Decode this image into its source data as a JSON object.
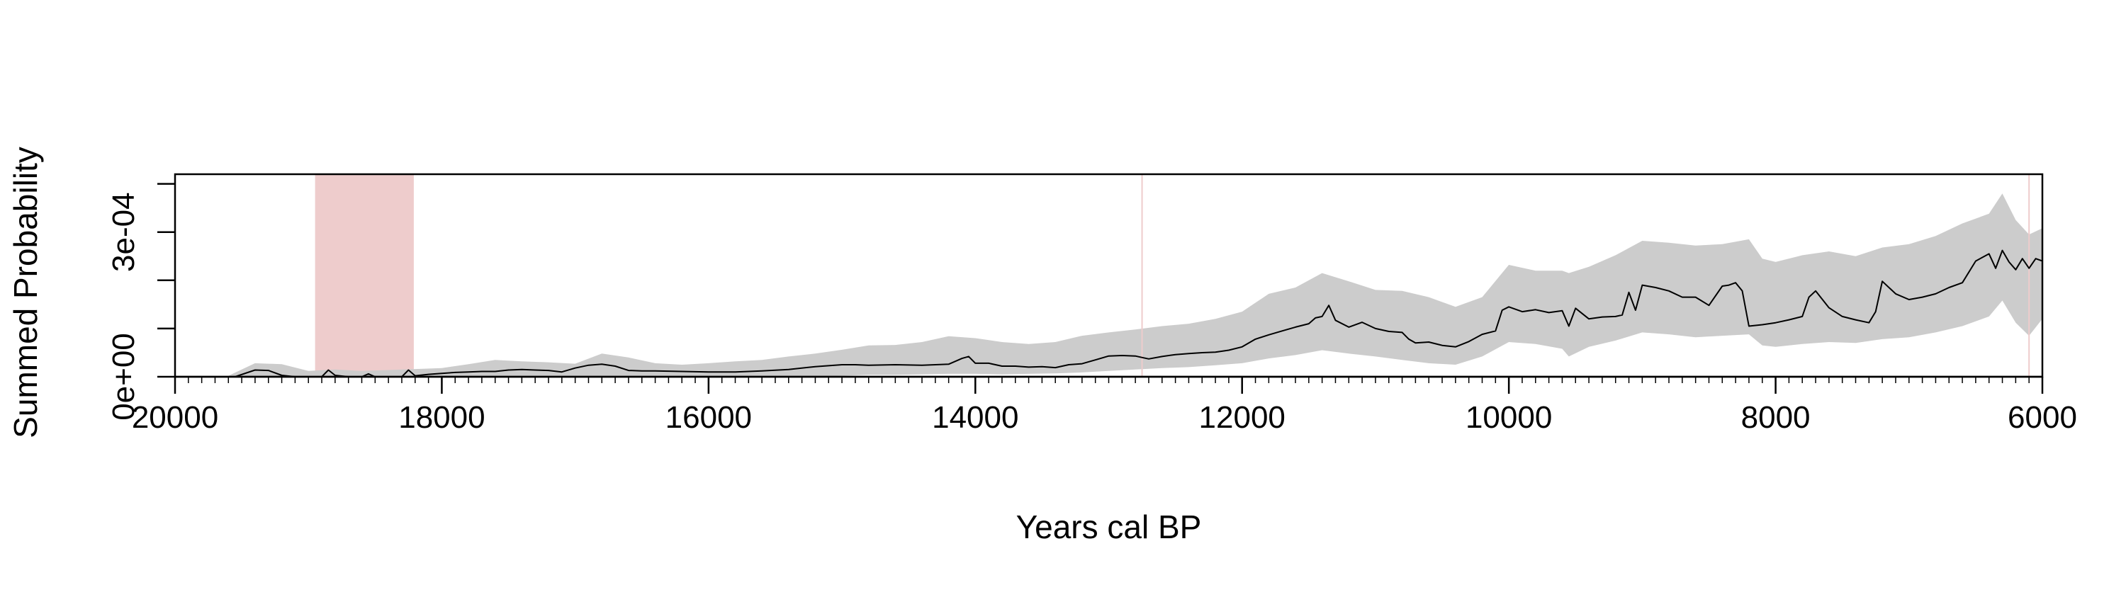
{
  "chart_data": {
    "type": "area",
    "title": "",
    "xlabel": "Years cal BP",
    "ylabel": "Summed Probability",
    "xlim": [
      20000,
      6000
    ],
    "ylim": [
      0,
      0.00042
    ],
    "x_ticks": [
      20000,
      18000,
      16000,
      14000,
      12000,
      10000,
      8000,
      6000
    ],
    "x_tick_labels": [
      "20000",
      "18000",
      "16000",
      "14000",
      "12000",
      "10000",
      "8000",
      "6000"
    ],
    "y_ticks": [
      0,
      0.0001,
      0.0002,
      0.0003,
      0.0004
    ],
    "y_tick_labels": [
      "0e+00",
      "",
      "",
      "3e-04",
      ""
    ],
    "grid": false,
    "colors": {
      "envelope": "#cccccc",
      "line": "#000000",
      "highlight": "#eecccc",
      "marker": "#eecccc"
    },
    "highlight_regions": [
      [
        18950,
        18210
      ]
    ],
    "marker_lines": [
      12750,
      6100
    ],
    "series": [
      {
        "role": "summed-probability",
        "x": [
          19550,
          19400,
          19300,
          19200,
          19100,
          19000,
          18900,
          18850,
          18800,
          18700,
          18600,
          18550,
          18500,
          18400,
          18300,
          18250,
          18200,
          18100,
          18000,
          17900,
          17800,
          17700,
          17600,
          17500,
          17400,
          17300,
          17200,
          17100,
          17000,
          16900,
          16800,
          16700,
          16600,
          16500,
          16400,
          16200,
          16000,
          15800,
          15600,
          15400,
          15200,
          15000,
          14900,
          14800,
          14600,
          14400,
          14200,
          14100,
          14050,
          14000,
          13900,
          13800,
          13700,
          13600,
          13500,
          13400,
          13300,
          13200,
          13100,
          13000,
          12900,
          12800,
          12750,
          12700,
          12600,
          12500,
          12400,
          12300,
          12200,
          12100,
          12000,
          11900,
          11800,
          11700,
          11600,
          11500,
          11450,
          11400,
          11350,
          11300,
          11200,
          11100,
          11000,
          10900,
          10800,
          10750,
          10700,
          10600,
          10500,
          10400,
          10300,
          10200,
          10100,
          10050,
          10000,
          9900,
          9800,
          9700,
          9600,
          9550,
          9500,
          9400,
          9300,
          9200,
          9150,
          9100,
          9050,
          9000,
          8900,
          8800,
          8700,
          8600,
          8500,
          8400,
          8350,
          8300,
          8250,
          8200,
          8100,
          8000,
          7900,
          7800,
          7750,
          7700,
          7600,
          7500,
          7400,
          7300,
          7250,
          7200,
          7100,
          7000,
          6900,
          6800,
          6700,
          6600,
          6500,
          6400,
          6350,
          6300,
          6250,
          6200,
          6150,
          6100,
          6050,
          6000
        ],
        "y": [
          0,
          1.4e-05,
          1.3e-05,
          3e-06,
          0,
          0,
          0,
          1.4e-05,
          3e-06,
          0,
          0,
          6e-06,
          0,
          0,
          0,
          1.4e-05,
          2e-06,
          5e-06,
          7e-06,
          9e-06,
          1e-05,
          1.1e-05,
          1.1e-05,
          1.4e-05,
          1.5e-05,
          1.4e-05,
          1.3e-05,
          1e-05,
          1.8e-05,
          2.4e-05,
          2.6e-05,
          2.2e-05,
          1.3e-05,
          1.2e-05,
          1.2e-05,
          1.1e-05,
          1e-05,
          1e-05,
          1.2e-05,
          1.5e-05,
          2.1e-05,
          2.5e-05,
          2.5e-05,
          2.4e-05,
          2.5e-05,
          2.4e-05,
          2.6e-05,
          3.8e-05,
          4.2e-05,
          2.8e-05,
          2.8e-05,
          2.2e-05,
          2.2e-05,
          2e-05,
          2.1e-05,
          1.9e-05,
          2.5e-05,
          2.7e-05,
          3.5e-05,
          4.3e-05,
          4.4e-05,
          4.3e-05,
          4e-05,
          3.7e-05,
          4.2e-05,
          4.6e-05,
          4.8e-05,
          5e-05,
          5.1e-05,
          5.5e-05,
          6.2e-05,
          7.8e-05,
          8.7e-05,
          9.5e-05,
          0.000103,
          0.00011,
          0.000122,
          0.000125,
          0.000148,
          0.000117,
          0.000103,
          0.000113,
          0.0001,
          9.4e-05,
          9.2e-05,
          7.8e-05,
          7e-05,
          7.2e-05,
          6.5e-05,
          6.2e-05,
          7.3e-05,
          8.8e-05,
          9.5e-05,
          0.000138,
          0.000145,
          0.000135,
          0.000139,
          0.000133,
          0.000137,
          0.000105,
          0.000142,
          0.00012,
          0.000124,
          0.000125,
          0.000128,
          0.000175,
          0.000138,
          0.00019,
          0.000185,
          0.000178,
          0.000165,
          0.000165,
          0.000148,
          0.000188,
          0.00019,
          0.000195,
          0.000178,
          0.000105,
          0.000108,
          0.000112,
          0.000118,
          0.000125,
          0.000165,
          0.000178,
          0.000143,
          0.000125,
          0.000118,
          0.000112,
          0.000135,
          0.000198,
          0.000172,
          0.00016,
          0.000165,
          0.000172,
          0.000185,
          0.000195,
          0.00024,
          0.000255,
          0.000225,
          0.000262,
          0.000238,
          0.000222,
          0.000245,
          0.000225,
          0.000245,
          0.00024
        ]
      },
      {
        "role": "envelope-upper",
        "x": [
          19600,
          19400,
          19200,
          19000,
          18800,
          18600,
          18400,
          18200,
          18000,
          17800,
          17600,
          17400,
          17200,
          17000,
          16800,
          16600,
          16400,
          16200,
          16000,
          15800,
          15600,
          15400,
          15200,
          15000,
          14800,
          14600,
          14400,
          14200,
          14000,
          13800,
          13600,
          13400,
          13200,
          13000,
          12800,
          12600,
          12400,
          12200,
          12000,
          11800,
          11600,
          11400,
          11200,
          11000,
          10800,
          10600,
          10400,
          10200,
          10000,
          9800,
          9600,
          9550,
          9400,
          9200,
          9000,
          8800,
          8600,
          8400,
          8200,
          8100,
          8000,
          7800,
          7600,
          7400,
          7200,
          7000,
          6800,
          6600,
          6400,
          6300,
          6200,
          6100,
          6000
        ],
        "y": [
          2e-06,
          2.8e-05,
          2.6e-05,
          1.2e-05,
          1.5e-05,
          1.2e-05,
          1.4e-05,
          1.6e-05,
          1.8e-05,
          2.6e-05,
          3.5e-05,
          3.2e-05,
          3e-05,
          2.7e-05,
          4.8e-05,
          4e-05,
          2.8e-05,
          2.5e-05,
          2.8e-05,
          3.2e-05,
          3.5e-05,
          4.2e-05,
          4.8e-05,
          5.6e-05,
          6.5e-05,
          6.6e-05,
          7.2e-05,
          8.4e-05,
          8e-05,
          7.2e-05,
          6.8e-05,
          7.2e-05,
          8.5e-05,
          9.2e-05,
          9.8e-05,
          0.000105,
          0.00011,
          0.00012,
          0.000135,
          0.000172,
          0.000185,
          0.000215,
          0.000198,
          0.00018,
          0.000178,
          0.000165,
          0.000145,
          0.000165,
          0.000232,
          0.00022,
          0.00022,
          0.000215,
          0.000228,
          0.000252,
          0.000282,
          0.000278,
          0.000272,
          0.000275,
          0.000285,
          0.000245,
          0.000238,
          0.000252,
          0.00026,
          0.00025,
          0.000268,
          0.000275,
          0.000292,
          0.000318,
          0.000338,
          0.00038,
          0.000325,
          0.000295,
          0.000308
        ]
      },
      {
        "role": "envelope-lower",
        "x": [
          19600,
          19400,
          19200,
          19000,
          18800,
          18600,
          18400,
          18200,
          18000,
          17800,
          17600,
          17400,
          17200,
          17000,
          16800,
          16600,
          16400,
          16200,
          16000,
          15800,
          15600,
          15400,
          15200,
          15000,
          14800,
          14600,
          14400,
          14200,
          14000,
          13800,
          13600,
          13400,
          13200,
          13000,
          12800,
          12600,
          12400,
          12200,
          12000,
          11800,
          11600,
          11400,
          11200,
          11000,
          10800,
          10600,
          10400,
          10200,
          10000,
          9800,
          9600,
          9550,
          9400,
          9200,
          9000,
          8800,
          8600,
          8400,
          8200,
          8100,
          8000,
          7800,
          7600,
          7400,
          7200,
          7000,
          6800,
          6600,
          6400,
          6300,
          6200,
          6100,
          6000
        ],
        "y": [
          0,
          0,
          0,
          0,
          0,
          0,
          0,
          0,
          0,
          0,
          0,
          0,
          0,
          0,
          0,
          0,
          0,
          0,
          0,
          0,
          0,
          0,
          0,
          2e-06,
          4e-06,
          4e-06,
          5e-06,
          6e-06,
          6e-06,
          5e-06,
          6e-06,
          7e-06,
          9e-06,
          1.2e-05,
          1.5e-05,
          1.8e-05,
          2e-05,
          2.4e-05,
          2.8e-05,
          3.8e-05,
          4.5e-05,
          5.5e-05,
          4.8e-05,
          4.2e-05,
          3.5e-05,
          2.8e-05,
          2.5e-05,
          4.2e-05,
          7.2e-05,
          6.8e-05,
          5.8e-05,
          4.2e-05,
          6.2e-05,
          7.5e-05,
          9.2e-05,
          8.8e-05,
          8.2e-05,
          8.5e-05,
          8.8e-05,
          6.5e-05,
          6.2e-05,
          6.8e-05,
          7.2e-05,
          7e-05,
          7.8e-05,
          8.2e-05,
          9.2e-05,
          0.000105,
          0.000125,
          0.000158,
          0.000112,
          8.5e-05,
          0.00012
        ]
      }
    ]
  }
}
